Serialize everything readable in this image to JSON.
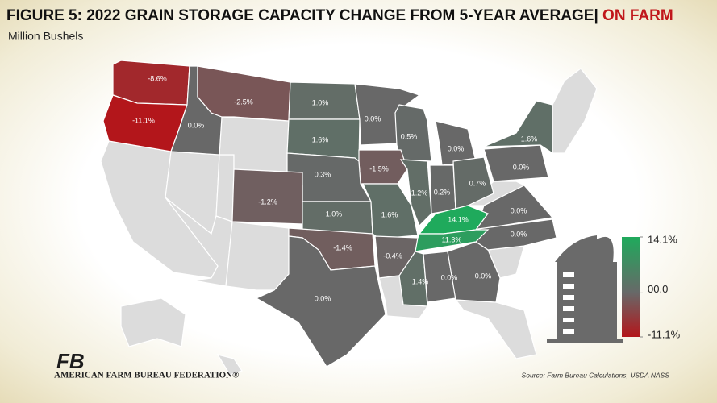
{
  "chart_data": {
    "type": "choropleth",
    "title": "FIGURE 5: 2022 GRAIN STORAGE CAPACITY CHANGE FROM 5-YEAR AVERAGE| ",
    "title_highlight": "ON FARM",
    "subtitle": "Million Bushels",
    "source": "Source: Farm Bureau Calculations, USDA NASS",
    "organization": "AMERICAN FARM BUREAU FEDERATION®",
    "logo": "FB",
    "values": [
      -8.6,
      -11.1,
      0.0,
      -2.5,
      1.0,
      1.6,
      0.0,
      0.5,
      0.0,
      -1.5,
      0.3,
      -1.2,
      1.0,
      1.6,
      1.2,
      0.2,
      0.7,
      0.0,
      1.6,
      0.0,
      0.0,
      14.1,
      11.3,
      -1.4,
      -0.4,
      1.4,
      0.0,
      0.0,
      0.0
    ],
    "value_labels": [
      "-8.6%",
      "-11.1%",
      "0.0%",
      "-2.5%",
      "1.0%",
      "1.6%",
      "0.0%",
      "0.5%",
      "0.0%",
      "-1.5%",
      "0.3%",
      "-1.2%",
      "1.0%",
      "1.6%",
      "1.2%",
      "0.2%",
      "0.7%",
      "0.0%",
      "1.6%",
      "0.0%",
      "0.0%",
      "14.1%",
      "11.3%",
      "-1.4%",
      "-0.4%",
      "1.4%",
      "0.0%",
      "0.0%",
      "0.0%"
    ],
    "legend_ticks": [
      {
        "value": 14.1,
        "label": "14.1%"
      },
      {
        "value": 0,
        "label": "00.0"
      },
      {
        "value": -11.1,
        "label": "-11.1%"
      }
    ],
    "legend_colors": [
      "#1faa5c",
      "#686868",
      "#b3161b"
    ]
  }
}
